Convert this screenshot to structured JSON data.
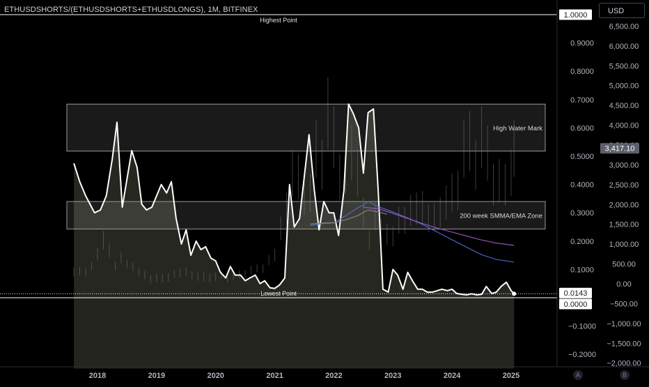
{
  "header": {
    "title": "ETHUSDSHORTS/(ETHUSDSHORTS+ETHUSDLONGS), 1M, BITFINEX",
    "currency": "USD"
  },
  "axis_buttons": {
    "auto": "A",
    "log": "B"
  },
  "chart_data": {
    "type": "line",
    "x_ticks": [
      "2018",
      "2019",
      "2020",
      "2021",
      "2022",
      "2023",
      "2024",
      "2025"
    ],
    "x_range": [
      2017.6,
      2025.4
    ],
    "left_axis": {
      "ticks": [
        0.9,
        0.8,
        0.7,
        0.6,
        0.5,
        0.4,
        0.3,
        0.2,
        0.1,
        -0.1,
        -0.2
      ],
      "tick_labels": [
        "0.9000",
        "0.8000",
        "0.7000",
        "0.6000",
        "0.5000",
        "0.4000",
        "0.3000",
        "0.2000",
        "0.1000",
        "−0.1000",
        "−0.2000"
      ],
      "range": [
        -0.25,
        1.02
      ],
      "labels": [
        {
          "text": "1.0000",
          "value": 1.0
        },
        {
          "text": "0.0143",
          "value": 0.0143
        },
        {
          "text": "0.0000",
          "value": 0.0
        }
      ]
    },
    "right_axis": {
      "ticks": [
        6500,
        6000,
        5500,
        5000,
        4500,
        4000,
        3500,
        3000,
        2500,
        2000,
        1500,
        1000,
        500,
        0,
        -500,
        -1000,
        -1500,
        -2000
      ],
      "tick_labels": [
        "6,500.00",
        "6,000.00",
        "5,500.00",
        "5,000.00",
        "4,500.00",
        "4,000.00",
        "3,500.00",
        "3,000.00",
        "2,500.00",
        "2,000.00",
        "1,500.00",
        "1,000.00",
        "500.00",
        "0.00",
        "−500.00",
        "−1,000.00",
        "−1,500.00",
        "−2,000.00"
      ],
      "range": [
        -2300,
        7050
      ],
      "price_label": {
        "text": "3,417.10",
        "value": 3417.1
      }
    },
    "annotations": [
      {
        "text": "Highest Point",
        "value": 1.0
      },
      {
        "text": "Lowest Point",
        "value": 0.0
      }
    ],
    "zones": [
      {
        "label": "High Water Mark",
        "x_range": [
          2017.5,
          2025.05
        ],
        "y_range": [
          0.518,
          0.684
        ]
      },
      {
        "label": "200 week SMMA/EMA Zone",
        "x_range": [
          2017.5,
          2025.05
        ],
        "y_range": [
          0.243,
          0.34
        ]
      }
    ],
    "series": [
      {
        "color": "#ffffff",
        "points": [
          [
            2017.6,
            0.475
          ],
          [
            2017.7,
            0.41
          ],
          [
            2017.8,
            0.36
          ],
          [
            2017.95,
            0.3
          ],
          [
            2018.05,
            0.31
          ],
          [
            2018.15,
            0.36
          ],
          [
            2018.25,
            0.49
          ],
          [
            2018.33,
            0.62
          ],
          [
            2018.42,
            0.32
          ],
          [
            2018.5,
            0.42
          ],
          [
            2018.58,
            0.52
          ],
          [
            2018.67,
            0.46
          ],
          [
            2018.75,
            0.33
          ],
          [
            2018.83,
            0.31
          ],
          [
            2018.92,
            0.32
          ],
          [
            2019.0,
            0.36
          ],
          [
            2019.08,
            0.4
          ],
          [
            2019.17,
            0.37
          ],
          [
            2019.25,
            0.41
          ],
          [
            2019.33,
            0.28
          ],
          [
            2019.42,
            0.19
          ],
          [
            2019.5,
            0.24
          ],
          [
            2019.58,
            0.15
          ],
          [
            2019.67,
            0.2
          ],
          [
            2019.75,
            0.17
          ],
          [
            2019.83,
            0.18
          ],
          [
            2019.92,
            0.14
          ],
          [
            2020.0,
            0.13
          ],
          [
            2020.08,
            0.09
          ],
          [
            2020.17,
            0.07
          ],
          [
            2020.25,
            0.11
          ],
          [
            2020.33,
            0.08
          ],
          [
            2020.42,
            0.08
          ],
          [
            2020.5,
            0.06
          ],
          [
            2020.58,
            0.07
          ],
          [
            2020.67,
            0.08
          ],
          [
            2020.75,
            0.05
          ],
          [
            2020.83,
            0.06
          ],
          [
            2020.92,
            0.035
          ],
          [
            2021.0,
            0.033
          ],
          [
            2021.08,
            0.045
          ],
          [
            2021.17,
            0.07
          ],
          [
            2021.25,
            0.4
          ],
          [
            2021.33,
            0.25
          ],
          [
            2021.42,
            0.28
          ],
          [
            2021.58,
            0.576
          ],
          [
            2021.67,
            0.38
          ],
          [
            2021.75,
            0.24
          ],
          [
            2021.83,
            0.34
          ],
          [
            2021.92,
            0.3
          ],
          [
            2022.0,
            0.3
          ],
          [
            2022.08,
            0.22
          ],
          [
            2022.17,
            0.38
          ],
          [
            2022.25,
            0.684
          ],
          [
            2022.33,
            0.65
          ],
          [
            2022.42,
            0.6
          ],
          [
            2022.5,
            0.44
          ],
          [
            2022.58,
            0.654
          ],
          [
            2022.67,
            0.667
          ],
          [
            2022.75,
            0.38
          ],
          [
            2022.83,
            0.03
          ],
          [
            2022.92,
            0.02
          ],
          [
            2023.0,
            0.1
          ],
          [
            2023.08,
            0.08
          ],
          [
            2023.17,
            0.03
          ],
          [
            2023.25,
            0.09
          ],
          [
            2023.33,
            0.06
          ],
          [
            2023.42,
            0.03
          ],
          [
            2023.5,
            0.03
          ],
          [
            2023.58,
            0.02
          ],
          [
            2023.67,
            0.02
          ],
          [
            2023.75,
            0.025
          ],
          [
            2023.83,
            0.03
          ],
          [
            2023.92,
            0.025
          ],
          [
            2024.0,
            0.03
          ],
          [
            2024.08,
            0.015
          ],
          [
            2024.17,
            0.012
          ],
          [
            2024.25,
            0.01
          ],
          [
            2024.33,
            0.014
          ],
          [
            2024.42,
            0.01
          ],
          [
            2024.5,
            0.012
          ],
          [
            2024.58,
            0.04
          ],
          [
            2024.67,
            0.015
          ],
          [
            2024.75,
            0.02
          ],
          [
            2024.83,
            0.04
          ],
          [
            2024.92,
            0.055
          ],
          [
            2025.0,
            0.025
          ],
          [
            2025.05,
            0.0143
          ]
        ]
      },
      {
        "color": "#4f6fd8",
        "points": [
          [
            2021.6,
            0.255
          ],
          [
            2021.8,
            0.262
          ],
          [
            2022.0,
            0.264
          ],
          [
            2022.2,
            0.29
          ],
          [
            2022.4,
            0.317
          ],
          [
            2022.5,
            0.328
          ],
          [
            2022.58,
            0.34
          ],
          [
            2022.75,
            0.322
          ],
          [
            2023.0,
            0.303
          ],
          [
            2023.25,
            0.282
          ],
          [
            2023.5,
            0.259
          ],
          [
            2023.75,
            0.232
          ],
          [
            2024.0,
            0.205
          ],
          [
            2024.25,
            0.178
          ],
          [
            2024.5,
            0.152
          ],
          [
            2024.75,
            0.135
          ],
          [
            2025.05,
            0.126
          ]
        ]
      },
      {
        "color": "#a259c9",
        "points": [
          [
            2022.5,
            0.32
          ],
          [
            2022.75,
            0.314
          ],
          [
            2023.0,
            0.298
          ],
          [
            2023.25,
            0.28
          ],
          [
            2023.5,
            0.262
          ],
          [
            2023.75,
            0.246
          ],
          [
            2024.0,
            0.232
          ],
          [
            2024.25,
            0.218
          ],
          [
            2024.5,
            0.204
          ],
          [
            2024.75,
            0.193
          ],
          [
            2025.05,
            0.185
          ]
        ]
      },
      {
        "color": "#8a8a8a",
        "points": [
          [
            2021.6,
            0.26
          ],
          [
            2021.8,
            0.264
          ],
          [
            2022.0,
            0.265
          ],
          [
            2022.2,
            0.275
          ],
          [
            2022.4,
            0.29
          ],
          [
            2022.58,
            0.31
          ],
          [
            2022.75,
            0.303
          ],
          [
            2022.9,
            0.295
          ]
        ]
      }
    ],
    "grid": false,
    "legend": "none"
  }
}
